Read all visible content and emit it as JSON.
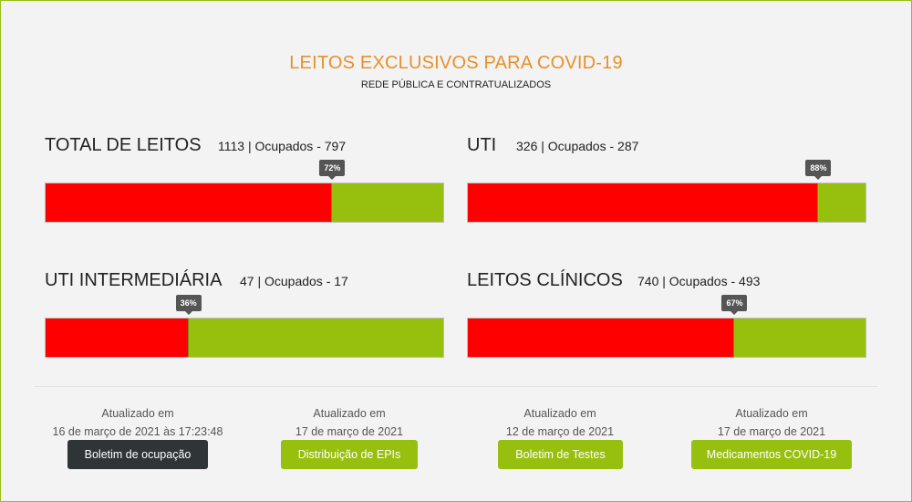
{
  "header": {
    "title": "LEITOS EXCLUSIVOS PARA COVID-19",
    "subtitle": "REDE PÚBLICA E CONTRATUALIZADOS"
  },
  "colors": {
    "occupied": "#ff0000",
    "free": "#97c00e",
    "title": "#e8902a"
  },
  "panels": [
    {
      "name": "TOTAL DE LEITOS",
      "stats": "1113 | Ocupados - 797",
      "percent_label": "72%",
      "percent": 72
    },
    {
      "name": "UTI",
      "stats": "326 | Ocupados - 287",
      "percent_label": "88%",
      "percent": 88
    },
    {
      "name": "UTI INTERMEDIÁRIA",
      "stats": "47 | Ocupados - 17",
      "percent_label": "36%",
      "percent": 36
    },
    {
      "name": "LEITOS CLÍNICOS",
      "stats": "740 | Ocupados - 493",
      "percent_label": "67%",
      "percent": 67
    }
  ],
  "updates": [
    {
      "label": "Atualizado em",
      "date": "16 de março de 2021 às 17:23:48",
      "button": "Boletim de ocupação"
    },
    {
      "label": "Atualizado em",
      "date": "17 de março de 2021",
      "button": "Distribuição de EPIs"
    },
    {
      "label": "Atualizado em",
      "date": "12 de março de 2021",
      "button": "Boletim de Testes"
    },
    {
      "label": "Atualizado em",
      "date": "17 de março de 2021",
      "button": "Medicamentos COVID-19"
    }
  ]
}
